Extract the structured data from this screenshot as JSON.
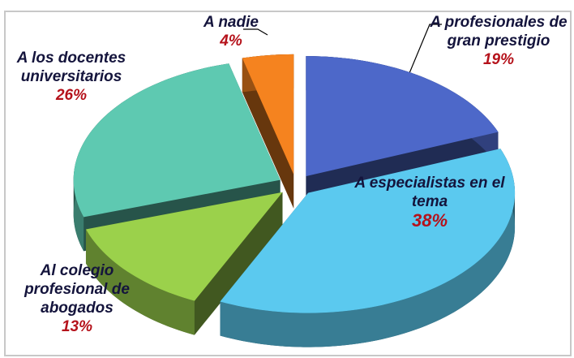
{
  "chart_data": {
    "type": "pie3d",
    "categories": [
      "A profesionales de gran prestigio",
      "A especialistas en el tema",
      "Al colegio profesional de abogados",
      "A los docentes universitarios",
      "A nadie"
    ],
    "values": [
      19,
      38,
      13,
      26,
      4
    ],
    "value_labels": [
      "19%",
      "38%",
      "13%",
      "26%",
      "4%"
    ],
    "colors": [
      "#4d68c9",
      "#5bc9ef",
      "#9bd14b",
      "#5ec9b1",
      "#f5831f"
    ]
  }
}
